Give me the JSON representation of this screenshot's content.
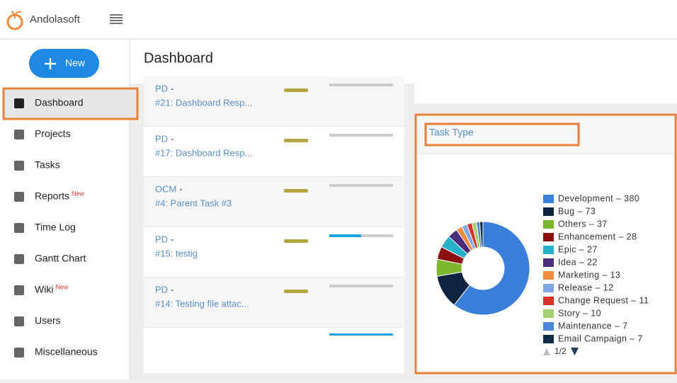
{
  "header": {
    "brand": "Andolasoft",
    "page_title": "Dashboard"
  },
  "sidebar": {
    "new_button": "New",
    "items": [
      {
        "label": "Dashboard"
      },
      {
        "label": "Projects"
      },
      {
        "label": "Tasks"
      },
      {
        "label": "Reports",
        "badge": "New"
      },
      {
        "label": "Time Log"
      },
      {
        "label": "Gantt Chart"
      },
      {
        "label": "Wiki",
        "badge": "New"
      },
      {
        "label": "Users"
      },
      {
        "label": "Miscellaneous"
      }
    ]
  },
  "tasks": [
    {
      "project": "PD",
      "sep": "-",
      "title": "#21: Dashboard Resp..."
    },
    {
      "project": "PD",
      "sep": "-",
      "title": "#17: Dashboard Resp..."
    },
    {
      "project": "OCM",
      "sep": "-",
      "title": "#4: Parent Task #3"
    },
    {
      "project": "PD",
      "sep": "-",
      "title": "#15: testig"
    },
    {
      "project": "PD",
      "sep": "-",
      "title": "#14: Testing file attac..."
    }
  ],
  "widget": {
    "title": "Task Type",
    "pager": "1/2"
  },
  "chart_data": {
    "type": "pie",
    "donut": true,
    "categories": [
      "Development – 380",
      "Bug – 73",
      "Others – 37",
      "Enhancement – 28",
      "Epic – 27",
      "Idea – 22",
      "Marketing – 13",
      "Release – 12",
      "Change Request – 11",
      "Story – 10",
      "Maintenance – 7",
      "Email Campaign – 7"
    ],
    "values": [
      380,
      73,
      37,
      28,
      27,
      22,
      13,
      12,
      11,
      10,
      7,
      7
    ],
    "colors": [
      "#3a7fd9",
      "#0e2440",
      "#7cb82f",
      "#8c0f0f",
      "#27b0c9",
      "#4b2c7d",
      "#f08a3c",
      "#7fa7e1",
      "#d9302c",
      "#a6cf74",
      "#4a86d9",
      "#112a45"
    ]
  }
}
